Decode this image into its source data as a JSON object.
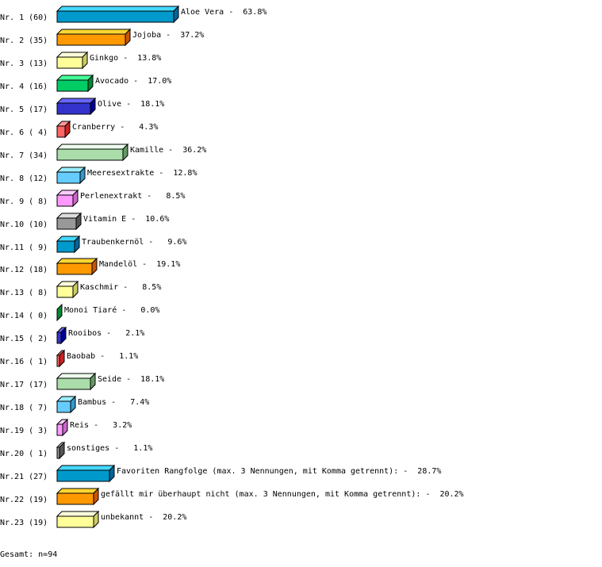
{
  "chart_data": {
    "type": "bar",
    "orientation": "horizontal",
    "style": "3d",
    "grid": false,
    "xlim": [
      0,
      100
    ],
    "categories": [
      "Nr. 1 (60)",
      "Nr. 2 (35)",
      "Nr. 3 (13)",
      "Nr. 4 (16)",
      "Nr. 5 (17)",
      "Nr. 6 ( 4)",
      "Nr. 7 (34)",
      "Nr. 8 (12)",
      "Nr. 9 ( 8)",
      "Nr.10 (10)",
      "Nr.11 ( 9)",
      "Nr.12 (18)",
      "Nr.13 ( 8)",
      "Nr.14 ( 0)",
      "Nr.15 ( 2)",
      "Nr.16 ( 1)",
      "Nr.17 (17)",
      "Nr.18 ( 7)",
      "Nr.19 ( 3)",
      "Nr.20 ( 1)",
      "Nr.21 (27)",
      "Nr.22 (19)",
      "Nr.23 (19)"
    ],
    "labels": [
      "Aloe Vera",
      "Jojoba",
      "Ginkgo",
      "Avocado",
      "Olive",
      "Cranberry",
      "Kamille",
      "Meeresextrakte",
      "Perlenextrakt",
      "Vitamin E",
      "Traubenkernöl",
      "Mandelöl",
      "Kaschmir",
      "Monoi Tiaré",
      "Rooibos",
      "Baobab",
      "Seide",
      "Bambus",
      "Reis",
      "sonstiges",
      "Favoriten Rangfolge (max. 3 Nennungen, mit Komma getrennt):",
      "gefällt mir überhaupt nicht (max. 3 Nennungen, mit Komma getrennt):",
      "unbekannt"
    ],
    "counts": [
      60,
      35,
      13,
      16,
      17,
      4,
      34,
      12,
      8,
      10,
      9,
      18,
      8,
      0,
      2,
      1,
      17,
      7,
      3,
      1,
      27,
      19,
      19
    ],
    "value_labels": [
      "63.8%",
      "37.2%",
      "13.8%",
      "17.0%",
      "18.1%",
      "4.3%",
      "36.2%",
      "12.8%",
      "8.5%",
      "10.6%",
      "9.6%",
      "19.1%",
      "8.5%",
      "0.0%",
      "2.1%",
      "1.1%",
      "18.1%",
      "7.4%",
      "3.2%",
      "1.1%",
      "28.7%",
      "20.2%",
      "20.2%"
    ],
    "values": [
      63.8,
      37.2,
      13.8,
      17.0,
      18.1,
      4.3,
      36.2,
      12.8,
      8.5,
      10.6,
      9.6,
      19.1,
      8.5,
      0.0,
      2.1,
      1.1,
      18.1,
      7.4,
      3.2,
      1.1,
      28.7,
      20.2,
      20.2
    ],
    "palette": [
      {
        "front": "#0099cc",
        "top": "#44d8ff",
        "side": "#006699"
      },
      {
        "front": "#ff9900",
        "top": "#ffd633",
        "side": "#cc5500"
      },
      {
        "front": "#ffff99",
        "top": "#ffffdd",
        "side": "#cccc66"
      },
      {
        "front": "#00cc66",
        "top": "#44ff99",
        "side": "#008833"
      },
      {
        "front": "#3333cc",
        "top": "#6666ff",
        "side": "#000099"
      },
      {
        "front": "#ff6666",
        "top": "#ff9999",
        "side": "#cc2222"
      },
      {
        "front": "#aaddaa",
        "top": "#eeffee",
        "side": "#669966"
      },
      {
        "front": "#66ccff",
        "top": "#99eeff",
        "side": "#3399cc"
      },
      {
        "front": "#ff99ff",
        "top": "#ffccff",
        "side": "#cc66cc"
      },
      {
        "front": "#999999",
        "top": "#dddddd",
        "side": "#555555"
      }
    ]
  },
  "footer": {
    "total": "Gesamt: n=94"
  }
}
